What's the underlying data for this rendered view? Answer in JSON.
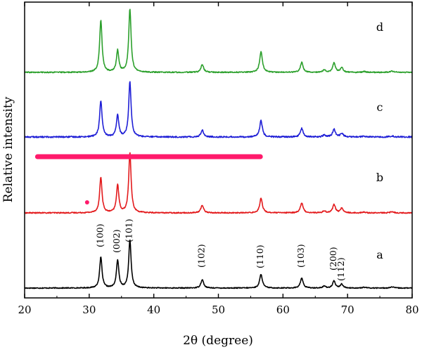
{
  "chart_data": {
    "type": "line",
    "title": "",
    "xlabel": "2θ (degree)",
    "ylabel": "Relative intensity",
    "xlim": [
      20,
      80
    ],
    "xticks": [
      20,
      30,
      40,
      50,
      60,
      70,
      80
    ],
    "yticks_shown": false,
    "grid": false,
    "legend": "none",
    "series": [
      {
        "label": "a",
        "color": "#000000",
        "baseline": 0.0,
        "noise": 0.006,
        "peaks": [
          [
            31.8,
            0.4,
            0.22
          ],
          [
            34.4,
            0.36,
            0.22
          ],
          [
            36.3,
            0.62,
            0.22
          ],
          [
            47.5,
            0.11,
            0.25
          ],
          [
            56.6,
            0.18,
            0.25
          ],
          [
            62.9,
            0.13,
            0.25
          ],
          [
            66.4,
            0.025,
            0.25
          ],
          [
            67.9,
            0.09,
            0.25
          ],
          [
            69.1,
            0.05,
            0.25
          ],
          [
            72.6,
            0.01,
            0.3
          ],
          [
            76.9,
            0.015,
            0.3
          ]
        ]
      },
      {
        "label": "b",
        "color": "#e31a1c",
        "baseline": 1.0,
        "noise": 0.007,
        "peaks": [
          [
            31.8,
            0.46,
            0.22
          ],
          [
            34.4,
            0.36,
            0.22
          ],
          [
            36.3,
            0.78,
            0.22
          ],
          [
            47.5,
            0.1,
            0.25
          ],
          [
            56.6,
            0.19,
            0.25
          ],
          [
            62.9,
            0.13,
            0.25
          ],
          [
            66.4,
            0.025,
            0.25
          ],
          [
            67.9,
            0.11,
            0.25
          ],
          [
            69.1,
            0.06,
            0.25
          ],
          [
            72.6,
            0.01,
            0.3
          ],
          [
            76.9,
            0.015,
            0.3
          ]
        ]
      },
      {
        "label": "c",
        "color": "#1f1fd6",
        "baseline": 2.0,
        "noise": 0.009,
        "peaks": [
          [
            31.8,
            0.47,
            0.22
          ],
          [
            34.4,
            0.28,
            0.22
          ],
          [
            36.3,
            0.72,
            0.22
          ],
          [
            47.5,
            0.09,
            0.25
          ],
          [
            56.6,
            0.21,
            0.25
          ],
          [
            62.9,
            0.11,
            0.25
          ],
          [
            66.4,
            0.025,
            0.25
          ],
          [
            67.9,
            0.1,
            0.25
          ],
          [
            69.1,
            0.05,
            0.25
          ],
          [
            72.6,
            0.01,
            0.3
          ],
          [
            76.9,
            0.015,
            0.3
          ]
        ]
      },
      {
        "label": "d",
        "color": "#2ca02c",
        "baseline": 3.0,
        "noise": 0.007,
        "peaks": [
          [
            31.8,
            0.68,
            0.22
          ],
          [
            34.4,
            0.28,
            0.22
          ],
          [
            36.3,
            0.82,
            0.22
          ],
          [
            47.5,
            0.1,
            0.25
          ],
          [
            56.6,
            0.27,
            0.25
          ],
          [
            62.9,
            0.13,
            0.25
          ],
          [
            66.4,
            0.03,
            0.25
          ],
          [
            67.9,
            0.12,
            0.25
          ],
          [
            69.1,
            0.06,
            0.25
          ],
          [
            72.6,
            0.01,
            0.3
          ],
          [
            76.9,
            0.015,
            0.3
          ]
        ]
      }
    ],
    "peak_labels": [
      {
        "text": "(100)",
        "x": 31.8
      },
      {
        "text": "(002)",
        "x": 34.4
      },
      {
        "text": "(101)",
        "x": 36.3
      },
      {
        "text": "(102)",
        "x": 47.5
      },
      {
        "text": "(110)",
        "x": 56.6
      },
      {
        "text": "(103)",
        "x": 62.9
      },
      {
        "text": "(200)",
        "x": 67.9
      },
      {
        "text": "(112)",
        "x": 69.1
      }
    ],
    "annotations": {
      "highlight_bar_color": "#ff1a6b",
      "highlight_bar_x": [
        22.0,
        56.5
      ],
      "dot_color": "#ff1a6b",
      "dot_x": 30.0
    }
  }
}
